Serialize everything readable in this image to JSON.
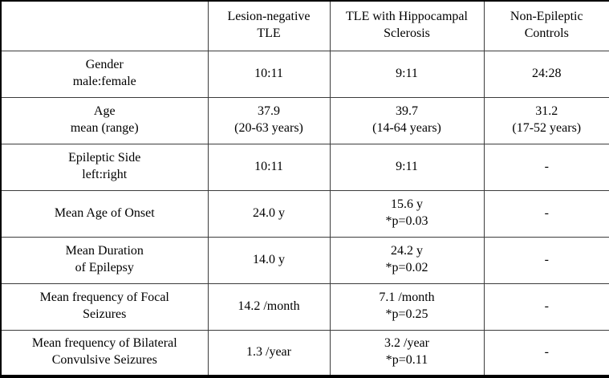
{
  "chart_data": {
    "type": "table",
    "title": "",
    "corner_label": "",
    "columns": [
      [
        "Lesion-negative",
        "TLE"
      ],
      [
        "TLE with Hippocampal",
        "Sclerosis"
      ],
      [
        "Non-Epileptic",
        "Controls"
      ]
    ],
    "rows": [
      {
        "label": [
          "Gender",
          "male:female"
        ],
        "values": [
          "10:11",
          "9:11",
          "24:28"
        ]
      },
      {
        "label": [
          "Age",
          "mean (range)"
        ],
        "values": [
          [
            "37.9",
            "(20-63 years)"
          ],
          [
            "39.7",
            "(14-64 years)"
          ],
          [
            "31.2",
            "(17-52 years)"
          ]
        ]
      },
      {
        "label": [
          "Epileptic Side",
          "left:right"
        ],
        "values": [
          "10:11",
          "9:11",
          "-"
        ]
      },
      {
        "label": [
          "Mean Age of Onset"
        ],
        "values": [
          "24.0 y",
          [
            "15.6 y",
            "*p=0.03"
          ],
          "-"
        ]
      },
      {
        "label": [
          "Mean Duration",
          "of Epilepsy"
        ],
        "values": [
          "14.0 y",
          [
            "24.2 y",
            "*p=0.02"
          ],
          "-"
        ]
      },
      {
        "label": [
          "Mean frequency of Focal",
          "Seizures"
        ],
        "values": [
          "14.2 /month",
          [
            "7.1 /month",
            "*p=0.25"
          ],
          "-"
        ]
      },
      {
        "label": [
          "Mean frequency of Bilateral",
          "Convulsive Seizures"
        ],
        "values": [
          "1.3 /year",
          [
            "3.2 /year",
            "*p=0.11"
          ],
          "-"
        ]
      }
    ],
    "colors": {
      "text": "#000000",
      "background": "#ffffff",
      "outer_border": "#000000",
      "inner_border": "#3c3c3c"
    }
  }
}
